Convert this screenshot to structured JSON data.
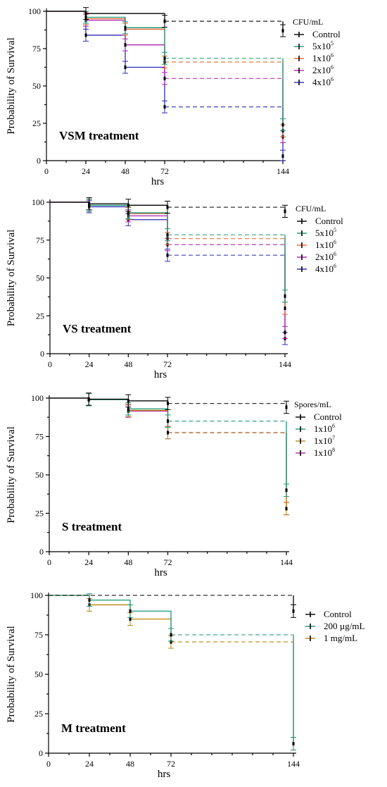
{
  "chart_data": [
    {
      "type": "line",
      "panel_label": "VSM treatment",
      "ylabel": "Probability of Survival",
      "xlabel": "hrs",
      "xticks": [
        0,
        24,
        48,
        72,
        144
      ],
      "yticks": [
        0,
        25,
        50,
        75,
        100
      ],
      "ylim": [
        0,
        100
      ],
      "legend_title": "CFU/mL",
      "series": [
        {
          "name": "Control",
          "color": "#000000",
          "steps": [
            [
              0,
              100
            ],
            [
              24,
              98.5
            ],
            [
              72,
              93.3
            ],
            [
              144,
              87
            ]
          ]
        },
        {
          "name": "5x10^5",
          "color": "#1a9678",
          "steps": [
            [
              0,
              100
            ],
            [
              24,
              96
            ],
            [
              48,
              89
            ],
            [
              72,
              68.5
            ],
            [
              144,
              24
            ]
          ]
        },
        {
          "name": "1x10^6",
          "color": "#e8632b",
          "steps": [
            [
              0,
              100
            ],
            [
              24,
              95
            ],
            [
              48,
              88
            ],
            [
              72,
              66
            ],
            [
              144,
              20
            ]
          ]
        },
        {
          "name": "2x10^6",
          "color": "#b321b3",
          "steps": [
            [
              0,
              100
            ],
            [
              24,
              94
            ],
            [
              48,
              77.5
            ],
            [
              72,
              55
            ],
            [
              144,
              16
            ]
          ]
        },
        {
          "name": "4x10^6",
          "color": "#2b2bb8",
          "steps": [
            [
              0,
              100
            ],
            [
              24,
              84
            ],
            [
              48,
              62.5
            ],
            [
              72,
              36
            ],
            [
              144,
              3
            ]
          ]
        }
      ]
    },
    {
      "type": "line",
      "panel_label": "VS treatment",
      "ylabel": "Probability of Survival",
      "xlabel": "hrs",
      "xticks": [
        0,
        24,
        48,
        72,
        144
      ],
      "yticks": [
        0,
        25,
        50,
        75,
        100
      ],
      "ylim": [
        0,
        100
      ],
      "legend_title": "CFU/mL",
      "series": [
        {
          "name": "Control",
          "color": "#000000",
          "steps": [
            [
              0,
              100
            ],
            [
              24,
              99
            ],
            [
              48,
              98
            ],
            [
              72,
              96.7
            ],
            [
              144,
              94
            ]
          ]
        },
        {
          "name": "5x10^5",
          "color": "#1a9678",
          "steps": [
            [
              0,
              100
            ],
            [
              24,
              98
            ],
            [
              48,
              93
            ],
            [
              72,
              78.5
            ],
            [
              144,
              38
            ]
          ]
        },
        {
          "name": "1x10^6",
          "color": "#e8632b",
          "steps": [
            [
              0,
              100
            ],
            [
              24,
              98
            ],
            [
              48,
              92.5
            ],
            [
              72,
              76
            ],
            [
              144,
              30
            ]
          ]
        },
        {
          "name": "2x10^6",
          "color": "#b321b3",
          "steps": [
            [
              0,
              100
            ],
            [
              24,
              98
            ],
            [
              48,
              91
            ],
            [
              72,
              72
            ],
            [
              144,
              14
            ]
          ]
        },
        {
          "name": "4x10^6",
          "color": "#2b2bb8",
          "steps": [
            [
              0,
              100
            ],
            [
              24,
              97
            ],
            [
              48,
              88.5
            ],
            [
              72,
              65
            ],
            [
              144,
              10
            ]
          ]
        }
      ]
    },
    {
      "type": "line",
      "panel_label": "S treatment",
      "ylabel": "Probability of Survival",
      "xlabel": "hrs",
      "xticks": [
        0,
        24,
        48,
        72,
        144
      ],
      "yticks": [
        0,
        25,
        50,
        75,
        100
      ],
      "ylim": [
        0,
        100
      ],
      "legend_title": "Spores/mL",
      "series": [
        {
          "name": "Control",
          "color": "#000000",
          "steps": [
            [
              0,
              100
            ],
            [
              24,
              99.3
            ],
            [
              48,
              98.2
            ],
            [
              72,
              96.5
            ],
            [
              144,
              94
            ]
          ]
        },
        {
          "name": "1x10^6",
          "color": "#1a9678",
          "steps": [
            [
              0,
              100
            ],
            [
              24,
              99
            ],
            [
              48,
              93
            ],
            [
              72,
              85
            ],
            [
              144,
              40
            ]
          ]
        },
        {
          "name": "1x10^7",
          "color": "#b8860b",
          "steps": [
            [
              0,
              100
            ],
            [
              24,
              99
            ],
            [
              48,
              92
            ],
            [
              72,
              77.5
            ],
            [
              144,
              28
            ]
          ]
        },
        {
          "name": "1x10^8",
          "color": "#b321b3",
          "steps": [
            [
              0,
              100
            ],
            [
              24,
              99
            ],
            [
              48,
              91.5
            ],
            [
              72,
              77.5
            ],
            [
              144,
              28
            ]
          ]
        }
      ]
    },
    {
      "type": "line",
      "panel_label": "M treatment",
      "ylabel": "Probability of Survival",
      "xlabel": "hrs",
      "xticks": [
        0,
        24,
        48,
        72,
        144
      ],
      "yticks": [
        0,
        25,
        50,
        75,
        100
      ],
      "ylim": [
        0,
        100
      ],
      "legend_title": "",
      "series": [
        {
          "name": "Control",
          "color": "#000000",
          "steps": [
            [
              0,
              100
            ],
            [
              144,
              90
            ]
          ]
        },
        {
          "name": "200 µg/mL",
          "color": "#1a9678",
          "steps": [
            [
              0,
              100
            ],
            [
              24,
              97
            ],
            [
              48,
              90
            ],
            [
              72,
              75
            ],
            [
              144,
              6
            ]
          ]
        },
        {
          "name": "1 mg/mL",
          "color": "#b8860b",
          "steps": [
            [
              0,
              100
            ],
            [
              24,
              94
            ],
            [
              48,
              85
            ],
            [
              72,
              70.5
            ],
            [
              144,
              6
            ]
          ]
        }
      ]
    }
  ]
}
